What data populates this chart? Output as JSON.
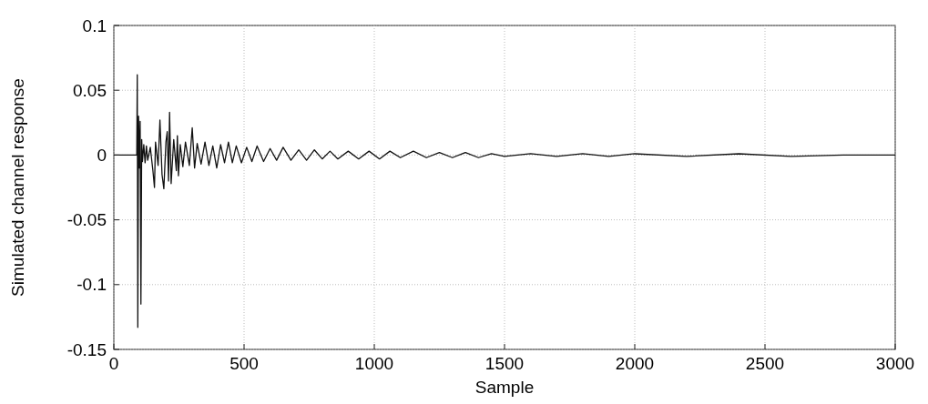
{
  "chart_data": {
    "type": "line",
    "xlabel": "Sample",
    "ylabel": "Simulated channel response",
    "xlim": [
      0,
      3000
    ],
    "ylim": [
      -0.15,
      0.1
    ],
    "xticks": [
      0,
      500,
      1000,
      1500,
      2000,
      2500,
      3000
    ],
    "yticks": [
      -0.15,
      -0.1,
      -0.05,
      0,
      0.05,
      0.1
    ],
    "grid": true,
    "series": [
      {
        "color": "#111111",
        "x": [
          0,
          88,
          90,
          92,
          95,
          98,
          101,
          104,
          107,
          110,
          115,
          120,
          125,
          130,
          140,
          150,
          156,
          160,
          170,
          177,
          185,
          192,
          200,
          205,
          210,
          214,
          220,
          230,
          240,
          244,
          248,
          255,
          265,
          275,
          290,
          301,
          310,
          320,
          335,
          350,
          365,
          380,
          395,
          410,
          425,
          440,
          455,
          470,
          490,
          510,
          530,
          550,
          575,
          600,
          625,
          650,
          680,
          710,
          740,
          770,
          800,
          830,
          860,
          900,
          940,
          980,
          1020,
          1060,
          1100,
          1150,
          1200,
          1250,
          1300,
          1350,
          1400,
          1450,
          1500,
          1600,
          1700,
          1800,
          1900,
          2000,
          2200,
          2400,
          2600,
          2800,
          3000
        ],
        "values": [
          0,
          0,
          0.062,
          -0.133,
          0.03,
          -0.01,
          0.026,
          -0.115,
          0.012,
          -0.005,
          0.008,
          -0.006,
          0.007,
          -0.004,
          0.006,
          -0.012,
          -0.025,
          0.01,
          -0.008,
          0.027,
          -0.015,
          -0.026,
          0.01,
          0.018,
          -0.02,
          0.033,
          -0.022,
          0.012,
          -0.012,
          0.015,
          -0.016,
          0.008,
          -0.009,
          0.01,
          -0.008,
          0.021,
          -0.01,
          0.009,
          -0.007,
          0.01,
          -0.008,
          0.007,
          -0.01,
          0.008,
          -0.006,
          0.01,
          -0.006,
          0.007,
          -0.006,
          0.006,
          -0.005,
          0.007,
          -0.005,
          0.005,
          -0.004,
          0.006,
          -0.004,
          0.004,
          -0.004,
          0.004,
          -0.003,
          0.003,
          -0.003,
          0.003,
          -0.003,
          0.003,
          -0.003,
          0.003,
          -0.002,
          0.003,
          -0.002,
          0.002,
          -0.002,
          0.002,
          -0.002,
          0.001,
          -0.001,
          0.001,
          -0.001,
          0.001,
          -0.001,
          0.001,
          -0.001,
          0.001,
          -0.001,
          0,
          0
        ]
      }
    ]
  }
}
